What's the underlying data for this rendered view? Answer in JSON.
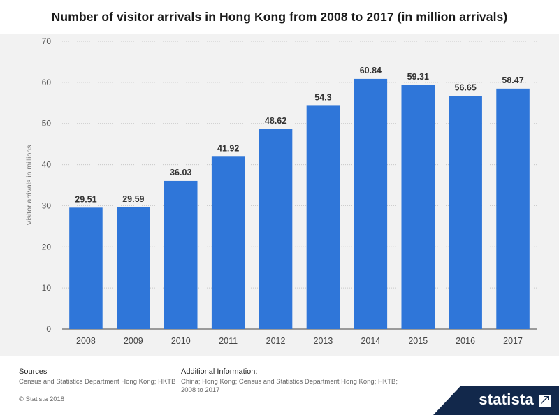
{
  "header": {
    "title": "Number of visitor arrivals in Hong Kong from 2008 to 2017 (in million arrivals)"
  },
  "colors": {
    "bar": "#2f76d9",
    "plot_background": "#f2f2f2",
    "brand_background": "#12284b"
  },
  "chart_data": {
    "type": "bar",
    "title": "Number of visitor arrivals in Hong Kong from 2008 to 2017 (in million arrivals)",
    "xlabel": "",
    "ylabel": "Visitor arrivals in millions",
    "categories": [
      "2008",
      "2009",
      "2010",
      "2011",
      "2012",
      "2013",
      "2014",
      "2015",
      "2016",
      "2017"
    ],
    "values": [
      29.51,
      29.59,
      36.03,
      41.92,
      48.62,
      54.3,
      60.84,
      59.31,
      56.65,
      58.47
    ],
    "value_labels": [
      "29.51",
      "29.59",
      "36.03",
      "41.92",
      "48.62",
      "54.3",
      "60.84",
      "59.31",
      "56.65",
      "58.47"
    ],
    "ylim": [
      0,
      70
    ],
    "yticks": [
      "0",
      "10",
      "20",
      "30",
      "40",
      "50",
      "60",
      "70"
    ],
    "grid": true,
    "legend": "none"
  },
  "footer": {
    "sources_title": "Sources",
    "sources_text": "Census and Statistics Department Hong Kong; HKTB",
    "copyright": "© Statista 2018",
    "additional_title": "Additional Information:",
    "additional_text": "China; Hong Kong; Census and Statistics Department Hong Kong; HKTB; 2008 to 2017",
    "brand": "statista",
    "brand_icon": "statista-logo-icon"
  }
}
